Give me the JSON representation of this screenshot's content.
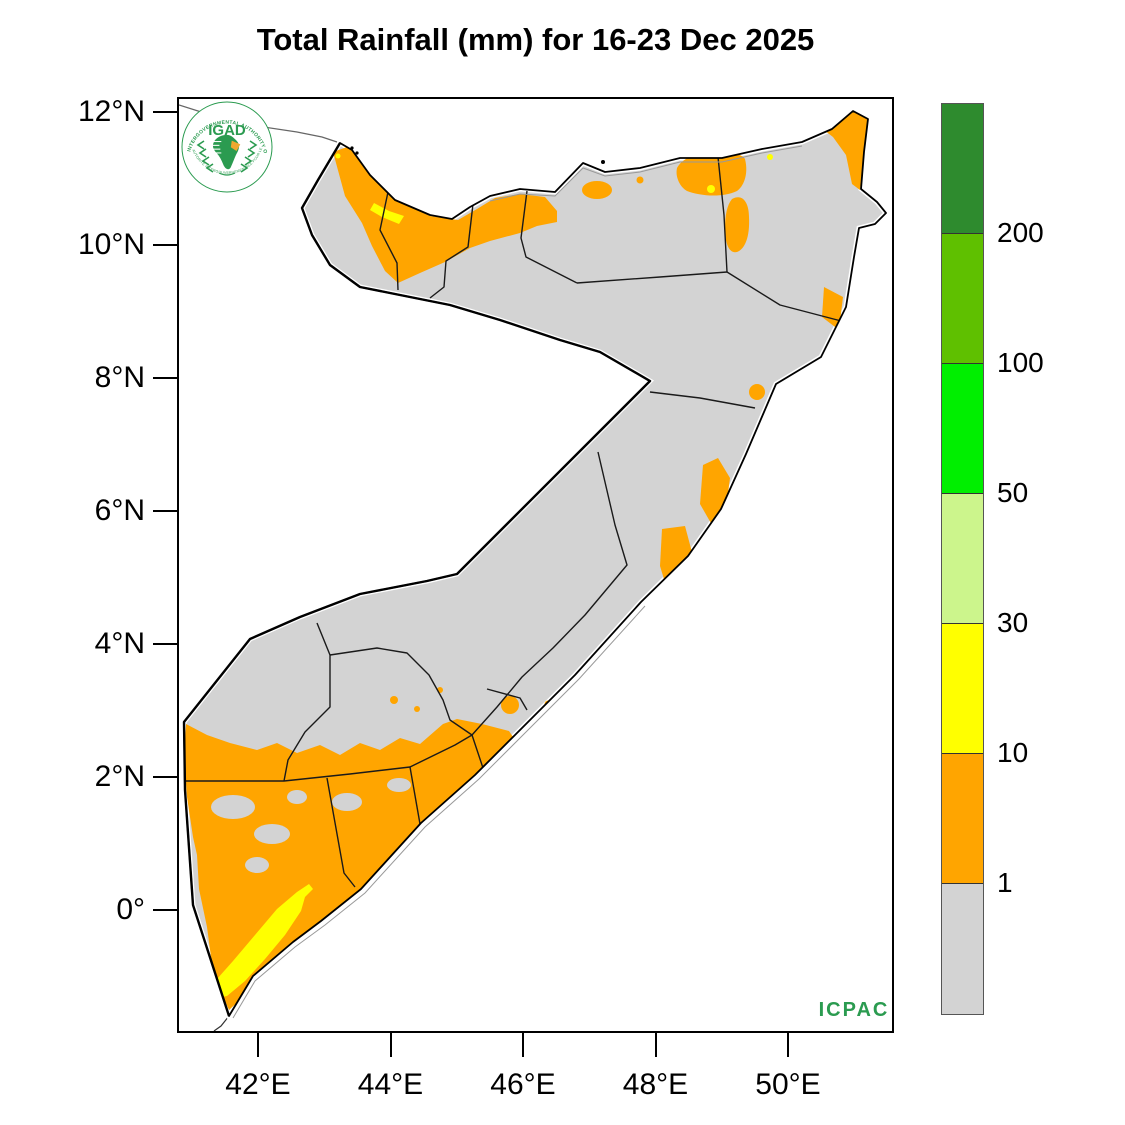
{
  "title": "Total Rainfall (mm) for 16-23 Dec 2025",
  "axes": {
    "lat_ticks": [
      "12°N",
      "10°N",
      "8°N",
      "6°N",
      "4°N",
      "2°N",
      "0°"
    ],
    "lon_ticks": [
      "42°E",
      "44°E",
      "46°E",
      "48°E",
      "50°E"
    ]
  },
  "colorbar": {
    "segments": [
      {
        "color": "#2e8b2e",
        "label_below": "200"
      },
      {
        "color": "#5fc000",
        "label_below": "100"
      },
      {
        "color": "#00ef00",
        "label_below": "50"
      },
      {
        "color": "#ccf58c",
        "label_below": "30"
      },
      {
        "color": "#ffff00",
        "label_below": "10"
      },
      {
        "color": "#ffa500",
        "label_below": "1"
      },
      {
        "color": "#d3d3d3",
        "label_below": null
      }
    ]
  },
  "palette": {
    "land_gray": "#d3d3d3",
    "orange_band": "#ffa500",
    "yellow_band": "#ffff00",
    "logo_green": "#2b9b50",
    "logo_accent_orange": "#f0a830"
  },
  "logo": {
    "arc_top": "INTERGOVERNMENTAL AUTHORITY ON DEVELOPMENT",
    "arc_bottom": "AUTORITE INTERGOUVERNEMENTALE POUR LE DEVELOPPEMENT",
    "name": "IGAD",
    "org": "ICPAC"
  },
  "chart_data": {
    "type": "heatmap",
    "subtype": "geographic rainfall raster map (choropleth)",
    "title": "Total Rainfall (mm) for 16-23 Dec 2025",
    "variable": "Total Rainfall (mm)",
    "period": "16-23 Dec 2025",
    "region": "Somalia (Horn of Africa)",
    "x_tick_labels": [
      "42°E",
      "44°E",
      "46°E",
      "48°E",
      "50°E"
    ],
    "y_tick_labels": [
      "12°N",
      "10°N",
      "8°N",
      "6°N",
      "4°N",
      "2°N",
      "0°"
    ],
    "x_range_deg_east": [
      40.8,
      51.6
    ],
    "y_range_deg_north": [
      -1.9,
      12.2
    ],
    "legend_position": "right vertical colorbar",
    "grid": false,
    "scale_levels_mm": [
      1,
      10,
      30,
      50,
      100,
      200
    ],
    "scale_bands": [
      {
        "range_mm": "< 1",
        "color": "#d3d3d3"
      },
      {
        "range_mm": "1-10",
        "color": "#ffa500"
      },
      {
        "range_mm": "10-30",
        "color": "#ffff00"
      },
      {
        "range_mm": "30-50",
        "color": "#ccf58c"
      },
      {
        "range_mm": "50-100",
        "color": "#00ef00"
      },
      {
        "range_mm": "100-200",
        "color": "#5fc000"
      },
      {
        "range_mm": "> 200",
        "color": "#2e8b2e"
      }
    ],
    "observations": [
      "Most of Somalia shows < 1 mm (gray)",
      "1-10 mm (orange) over the northwest coast (Awdal / Woqooyi Galbeed), patches along the Gulf of Aden coast and the northeast Bari tip",
      "1-10 mm (orange) in a narrow strip along the central Indian Ocean coast (~4-8°N)",
      "Broad 1-10 mm (orange) area across southern Somalia (Gedo, Bay, Shabelle and Juba regions)",
      "10-30 mm (yellow) in an elongated coastal band near Kismayo in the far south (~0° to 1°S) plus small slivers on the northwest coast",
      "No areas reach 30 mm or more"
    ]
  }
}
